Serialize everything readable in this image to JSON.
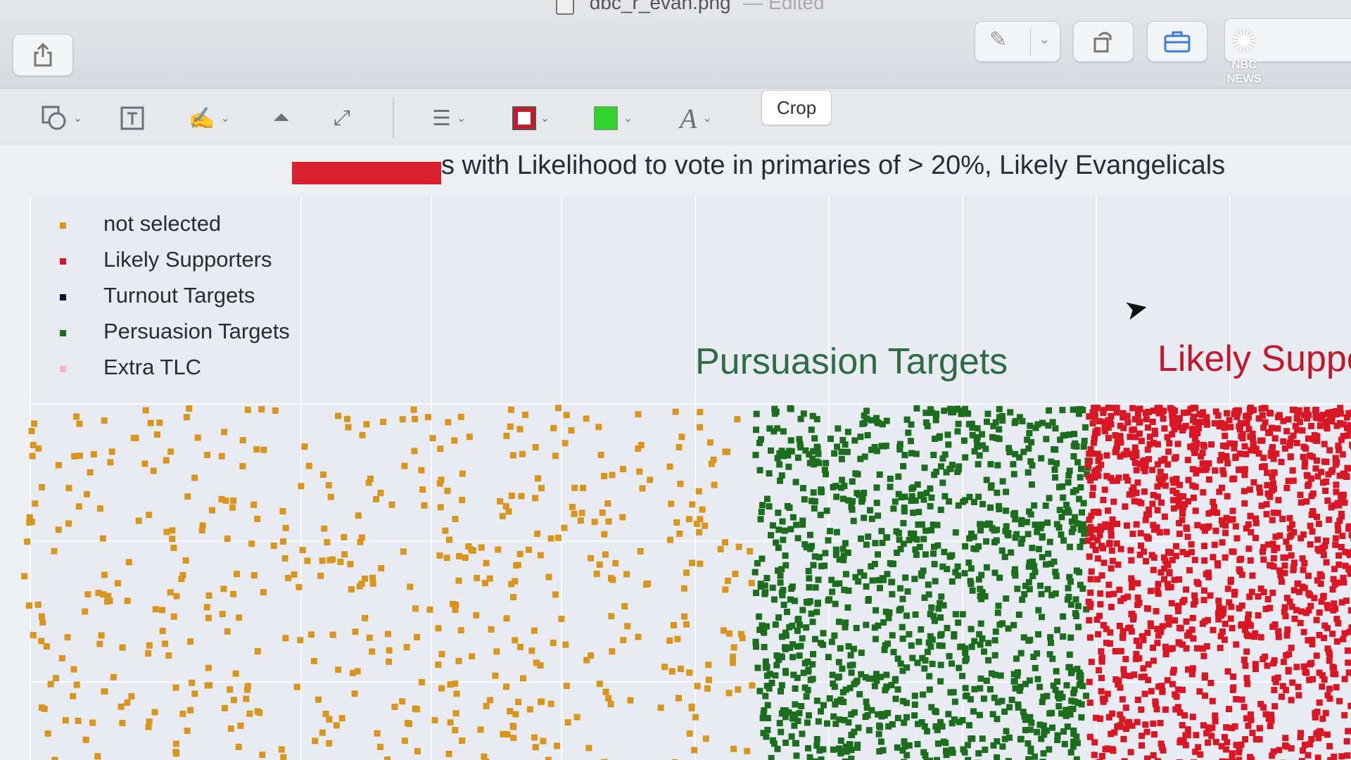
{
  "window": {
    "title": "dbc_r_evan.png",
    "edited": "— Edited"
  },
  "toolbar": {
    "crop_label": "Crop",
    "border_color": "#c51a2a",
    "fill_color": "#2fd32a"
  },
  "watermark": {
    "text": "NBC NEWS"
  },
  "document": {
    "title_suffix": "s with Likelihood to vote in primaries of > 20%, Likely Evangelicals"
  },
  "chart_data": {
    "type": "scatter",
    "title": "s with Likelihood to vote in primaries of > 20%, Likely Evangelicals",
    "legend_placement": "top-left",
    "grid": true,
    "legend": [
      {
        "label": "not selected",
        "color": "#d9961f"
      },
      {
        "label": "Likely Supporters",
        "color": "#d81624"
      },
      {
        "label": "Turnout Targets",
        "color": "#111133"
      },
      {
        "label": "Persuasion Targets",
        "color": "#1c6e1e"
      },
      {
        "label": "Extra TLC",
        "color": "#f2b9c4"
      }
    ],
    "annotations": [
      {
        "text": "Pursuasion Targets",
        "color": "#2f6b43"
      },
      {
        "text": "Likely Suppo",
        "color": "#c4162b"
      }
    ],
    "series": [
      {
        "name": "not selected",
        "color": "#d9961f",
        "region": [
          0.0,
          0.55
        ],
        "count": 520
      },
      {
        "name": "Persuasion Targets",
        "color": "#1c6e1e",
        "region": [
          0.55,
          0.8
        ],
        "count": 1150
      },
      {
        "name": "Likely Supporters",
        "color": "#d81624",
        "region": [
          0.8,
          1.0
        ],
        "count": 1250
      }
    ]
  }
}
